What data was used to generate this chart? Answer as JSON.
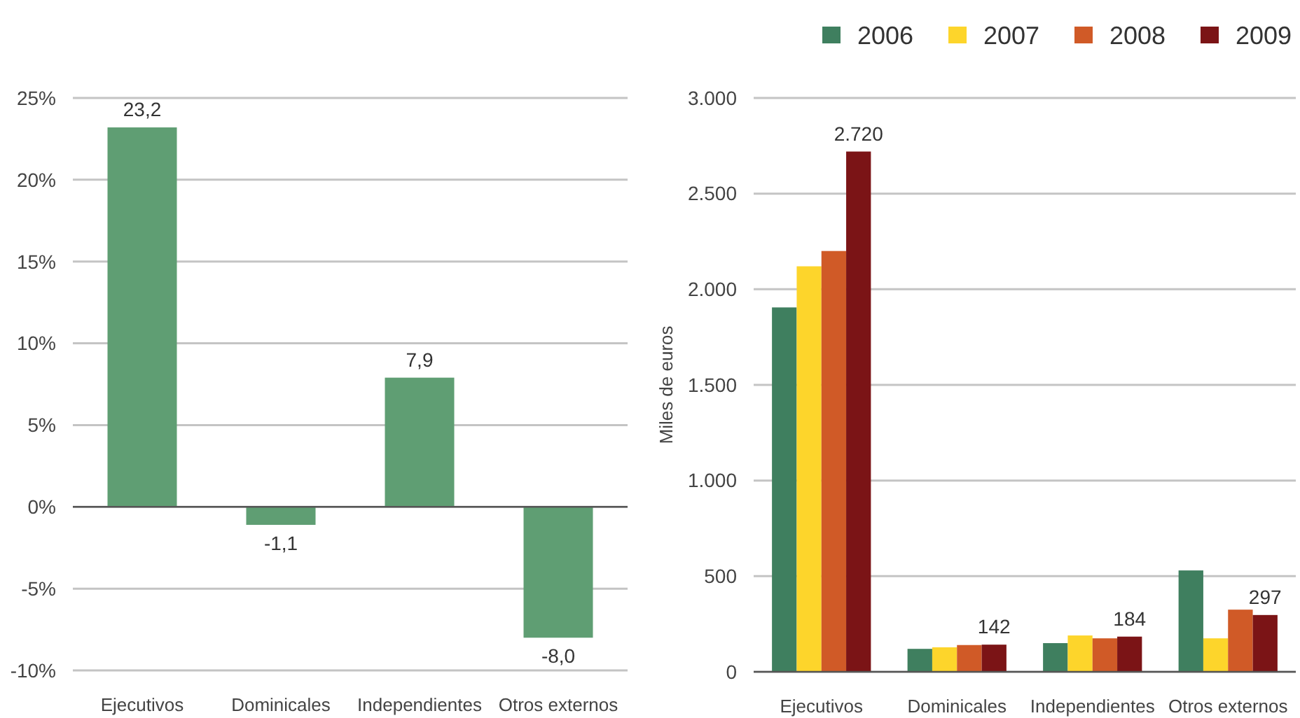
{
  "chart_data": [
    {
      "type": "bar",
      "categories": [
        "Ejecutivos",
        "Dominicales",
        "Independientes",
        "Otros externos"
      ],
      "values": [
        23.2,
        -1.1,
        7.9,
        -8.0
      ],
      "color": "#5f9e73",
      "value_labels": [
        "23,2",
        "-1,1",
        "7,9",
        "-8,0"
      ],
      "ylim": [
        -10,
        25
      ],
      "yticks": [
        {
          "value": -10,
          "label": "-10%"
        },
        {
          "value": -5,
          "label": "-5%"
        },
        {
          "value": 0,
          "label": "0%"
        },
        {
          "value": 5,
          "label": "5%"
        },
        {
          "value": 10,
          "label": "10%"
        },
        {
          "value": 15,
          "label": "15%"
        },
        {
          "value": 20,
          "label": "20%"
        },
        {
          "value": 25,
          "label": "25%"
        }
      ],
      "grid": "y"
    },
    {
      "type": "bar",
      "categories": [
        "Ejecutivos",
        "Dominicales",
        "Independientes",
        "Otros externos"
      ],
      "series": [
        {
          "name": "2006",
          "color": "#3f7f5f",
          "values": [
            1905,
            120,
            150,
            530
          ]
        },
        {
          "name": "2007",
          "color": "#fdd52b",
          "values": [
            2120,
            128,
            190,
            175
          ]
        },
        {
          "name": "2008",
          "color": "#d05a27",
          "values": [
            2200,
            140,
            175,
            325
          ]
        },
        {
          "name": "2009",
          "color": "#7b1416",
          "values": [
            2720,
            142,
            184,
            297
          ],
          "value_labels": [
            "2.720",
            "142",
            "184",
            "297"
          ]
        }
      ],
      "ylabel": "Miles de euros",
      "ylim": [
        0,
        3000
      ],
      "yticks": [
        0,
        500,
        {
          "value": 1000,
          "label": "1.000"
        },
        {
          "value": 1500,
          "label": "1.500"
        },
        {
          "value": 2000,
          "label": "2.000"
        },
        {
          "value": 2500,
          "label": "2.500"
        },
        {
          "value": 3000,
          "label": "3.000"
        }
      ],
      "grid": "y",
      "legend": "top right"
    }
  ]
}
